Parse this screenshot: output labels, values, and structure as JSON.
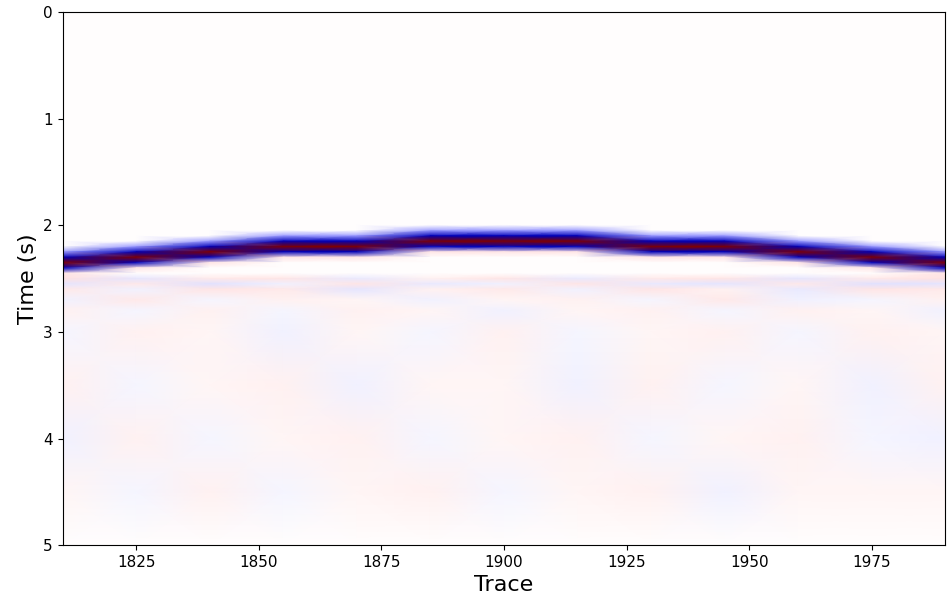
{
  "chart_data": {
    "type": "heatmap",
    "x_label": "Trace",
    "y_label": "Time (s)",
    "x": [
      1810,
      1825,
      1840,
      1855,
      1870,
      1885,
      1900,
      1915,
      1930,
      1945,
      1960,
      1975,
      1990
    ],
    "y": [
      0,
      1.0,
      1.5,
      1.8,
      1.9,
      1.95,
      2.0,
      2.05,
      2.1,
      2.15,
      2.2,
      2.25,
      2.3,
      2.35,
      2.4,
      2.45,
      2.5,
      2.55,
      2.6,
      2.7,
      2.8,
      3.0,
      3.5,
      4.0,
      4.5,
      5.0
    ],
    "cells": [
      [
        0,
        0,
        0,
        0,
        0,
        0,
        0,
        0,
        0,
        0,
        0,
        0,
        0
      ],
      [
        0,
        0,
        0,
        0,
        0,
        0,
        0,
        0,
        0,
        0,
        0,
        0,
        0
      ],
      [
        0,
        0,
        0,
        0,
        0,
        0,
        0,
        0,
        0,
        0,
        0,
        0,
        0
      ],
      [
        0,
        0,
        0,
        0,
        0,
        0,
        0,
        0,
        0,
        0,
        0,
        0,
        0
      ],
      [
        0,
        0,
        0,
        0,
        0,
        0,
        0,
        0,
        0,
        0,
        0,
        0,
        0
      ],
      [
        0,
        0,
        0,
        0,
        0,
        0,
        0,
        0,
        0,
        0,
        0,
        0,
        0
      ],
      [
        0,
        0,
        0,
        0,
        0,
        0,
        0,
        0,
        0,
        0,
        0,
        0,
        0
      ],
      [
        0,
        0,
        0,
        0,
        0,
        -0.2,
        -0.2,
        -0.2,
        0,
        0,
        0,
        0,
        0
      ],
      [
        0,
        0,
        0,
        -0.2,
        -0.2,
        -0.7,
        -0.7,
        -0.7,
        -0.2,
        -0.2,
        0,
        0,
        0
      ],
      [
        0,
        0,
        -0.2,
        -0.7,
        -0.7,
        1,
        1,
        1,
        -0.7,
        -0.7,
        -0.2,
        0,
        0
      ],
      [
        0,
        -0.2,
        -0.7,
        1,
        1,
        -0.7,
        -0.7,
        -0.7,
        1,
        1,
        -0.7,
        -0.2,
        0
      ],
      [
        -0.2,
        -0.7,
        1,
        -0.7,
        -0.7,
        0.05,
        0.05,
        0.05,
        -0.7,
        -0.7,
        1,
        -0.7,
        -0.2
      ],
      [
        -0.7,
        1,
        -0.7,
        0.05,
        0.05,
        0,
        0,
        0,
        0.05,
        0.05,
        -0.7,
        1,
        -0.7
      ],
      [
        1,
        -0.7,
        0.05,
        0,
        0,
        0,
        0,
        0,
        0,
        0,
        0.05,
        -0.7,
        1
      ],
      [
        -0.7,
        0.05,
        0,
        0,
        0,
        0,
        0,
        0,
        0,
        0,
        0,
        0.05,
        -0.7
      ],
      [
        0.05,
        0,
        0,
        0,
        0,
        0,
        0,
        0,
        0,
        0,
        0,
        0,
        0.05
      ],
      [
        0.06,
        -0.05,
        0.04,
        0.05,
        -0.04,
        0.03,
        0.05,
        -0.04,
        0.04,
        0.05,
        -0.05,
        0.04,
        0.06
      ],
      [
        -0.05,
        0.04,
        -0.06,
        -0.03,
        0.05,
        -0.04,
        -0.03,
        0.05,
        -0.04,
        -0.05,
        0.04,
        -0.06,
        -0.05
      ],
      [
        0.04,
        -0.03,
        0.05,
        0.04,
        -0.05,
        0.03,
        0.04,
        -0.03,
        0.05,
        0.03,
        -0.04,
        0.05,
        0.04
      ],
      [
        -0.03,
        0.04,
        -0.02,
        0.03,
        0.02,
        -0.03,
        0.02,
        0.03,
        -0.02,
        0.04,
        -0.03,
        -0.02,
        0.03
      ],
      [
        0.03,
        -0.02,
        0.03,
        -0.02,
        0.03,
        0.02,
        -0.03,
        0.02,
        0.03,
        -0.02,
        0.03,
        0.02,
        -0.03
      ],
      [
        -0.02,
        0.03,
        0.02,
        -0.03,
        0.02,
        -0.02,
        0.03,
        -0.02,
        0.02,
        0.03,
        -0.02,
        0.03,
        0.02
      ],
      [
        0.03,
        -0.02,
        0.02,
        0.03,
        -0.03,
        0.02,
        0.02,
        -0.03,
        0.03,
        -0.02,
        0.02,
        -0.03,
        0.03
      ],
      [
        -0.03,
        0.03,
        -0.02,
        0.02,
        0.03,
        -0.02,
        0.02,
        0.03,
        -0.02,
        0.02,
        0.03,
        -0.02,
        -0.03
      ],
      [
        0.02,
        -0.02,
        0.03,
        -0.02,
        0.02,
        0.03,
        -0.02,
        0.02,
        0.03,
        -0.03,
        0.02,
        0.02,
        0.02
      ],
      [
        0,
        0,
        0,
        0,
        0,
        0,
        0,
        0,
        0,
        0,
        0,
        0,
        0
      ]
    ],
    "zlim": [
      -1,
      1
    ],
    "xlim": [
      1810,
      1990
    ],
    "xticks": [
      1825,
      1850,
      1875,
      1900,
      1925,
      1950,
      1975
    ],
    "ylim": [
      5,
      0
    ],
    "yticks": [
      0,
      1,
      2,
      3,
      4,
      5
    ]
  }
}
